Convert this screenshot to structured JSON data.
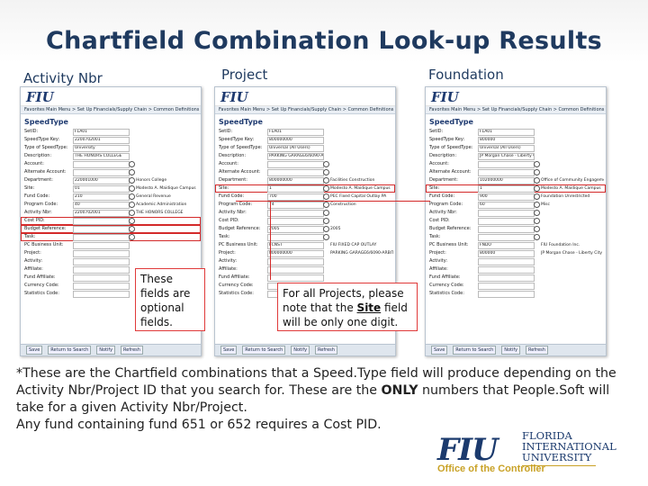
{
  "title": "Chartfield Combination Look-up Results",
  "column_labels": {
    "activity": "Activity Nbr",
    "project": "Project",
    "foundation": "Foundation"
  },
  "screens": {
    "app_logo": "FIU",
    "nav": "Favorites   Main Menu  >  Set Up Financials/Supply Chain  >  Common Definitions  >  Design C",
    "page_title": "SpeedType",
    "footer_buttons": [
      "Save",
      "Return to Search",
      "Notify",
      "Refresh"
    ],
    "activity_rows": [
      {
        "k": "SetID:",
        "v": "FLA01",
        "d": ""
      },
      {
        "k": "SpeedType Key:",
        "v": "2200702001",
        "d": ""
      },
      {
        "k": "Type of SpeedType:",
        "v": "University",
        "d": ""
      },
      {
        "k": "Description:",
        "v": "THE HONORS COLLEGE",
        "d": ""
      },
      {
        "k": "Account:",
        "v": "",
        "d": ""
      },
      {
        "k": "Alternate Account:",
        "v": "",
        "d": ""
      },
      {
        "k": "Department:",
        "v": "220001000",
        "d": "Honors College"
      },
      {
        "k": "Site:",
        "v": "01",
        "d": "Modesto A. Maidique Campus"
      },
      {
        "k": "Fund Code:",
        "v": "210",
        "d": "General Revenue"
      },
      {
        "k": "Program Code:",
        "v": "40",
        "d": "Academic Administration"
      },
      {
        "k": "Activity Nbr:",
        "v": "2200702001",
        "d": "THE HONORS COLLEGE"
      },
      {
        "k": "Cost PID:",
        "v": "",
        "d": "",
        "hl": true
      },
      {
        "k": "Budget Reference:",
        "v": "",
        "d": "",
        "hl": true
      },
      {
        "k": "Task:",
        "v": "",
        "d": "",
        "hl": true
      },
      {
        "k": "PC Business Unit:",
        "v": "",
        "d": ""
      },
      {
        "k": "Project:",
        "v": "",
        "d": ""
      },
      {
        "k": "Activity:",
        "v": "",
        "d": ""
      },
      {
        "k": "Affiliate:",
        "v": "",
        "d": ""
      },
      {
        "k": "Fund Affiliate:",
        "v": "",
        "d": ""
      },
      {
        "k": "Currency Code:",
        "v": "",
        "d": ""
      },
      {
        "k": "Statistics Code:",
        "v": "",
        "d": ""
      }
    ],
    "project_rows": [
      {
        "k": "SetID:",
        "v": "FLA01",
        "d": ""
      },
      {
        "k": "SpeedType Key:",
        "v": "800000000",
        "d": ""
      },
      {
        "k": "Type of SpeedType:",
        "v": "Universal (All Users)",
        "d": ""
      },
      {
        "k": "Description:",
        "v": "PARKING GARAGE6/6090-ARBITRAGE",
        "d": ""
      },
      {
        "k": "Account:",
        "v": "",
        "d": ""
      },
      {
        "k": "Alternate Account:",
        "v": "",
        "d": ""
      },
      {
        "k": "Department:",
        "v": "800000000",
        "d": "Facilities Construction"
      },
      {
        "k": "Site:",
        "v": "1",
        "d": "Modesto A. Maidique Campus",
        "hl": true
      },
      {
        "k": "Fund Code:",
        "v": "700",
        "d": "PEC Fixed Capital Outlay PA"
      },
      {
        "k": "Program Code:",
        "v": "74",
        "d": "Construction"
      },
      {
        "k": "Activity Nbr:",
        "v": "",
        "d": ""
      },
      {
        "k": "Cost PID:",
        "v": "",
        "d": ""
      },
      {
        "k": "Budget Reference:",
        "v": "2005",
        "d": "2005"
      },
      {
        "k": "Task:",
        "v": "",
        "d": ""
      },
      {
        "k": "PC Business Unit:",
        "v": "FCNST",
        "d": "FIU FIXED CAP OUTLAY"
      },
      {
        "k": "Project:",
        "v": "800000000",
        "d": "PARKING GARAGE6/6090-ARBITRAGE"
      },
      {
        "k": "Activity:",
        "v": "",
        "d": ""
      },
      {
        "k": "Affiliate:",
        "v": "",
        "d": ""
      },
      {
        "k": "Fund Affiliate:",
        "v": "",
        "d": ""
      },
      {
        "k": "Currency Code:",
        "v": "",
        "d": ""
      },
      {
        "k": "Statistics Code:",
        "v": "",
        "d": ""
      }
    ],
    "foundation_rows": [
      {
        "k": "SetID:",
        "v": "FLA01",
        "d": ""
      },
      {
        "k": "SpeedType Key:",
        "v": "800000",
        "d": ""
      },
      {
        "k": "Type of SpeedType:",
        "v": "Universal (All Users)",
        "d": ""
      },
      {
        "k": "Description:",
        "v": "JP Morgan Chase - Liberty City",
        "d": ""
      },
      {
        "k": "Account:",
        "v": "",
        "d": ""
      },
      {
        "k": "Alternate Account:",
        "v": "",
        "d": ""
      },
      {
        "k": "Department:",
        "v": "102000000",
        "d": "Office of Community Engagement"
      },
      {
        "k": "Site:",
        "v": "1",
        "d": "Modesto A. Maidique Campus",
        "hl": true
      },
      {
        "k": "Fund Code:",
        "v": "900",
        "d": "Foundation Unrestricted"
      },
      {
        "k": "Program Code:",
        "v": "60",
        "d": "Misc"
      },
      {
        "k": "Activity Nbr:",
        "v": "",
        "d": ""
      },
      {
        "k": "Cost PID:",
        "v": "",
        "d": ""
      },
      {
        "k": "Budget Reference:",
        "v": "",
        "d": ""
      },
      {
        "k": "Task:",
        "v": "",
        "d": ""
      },
      {
        "k": "PC Business Unit:",
        "v": "FNDO",
        "d": "FIU Foundation Inc."
      },
      {
        "k": "Project:",
        "v": "800000",
        "d": "JP Morgan Chase - Liberty City"
      },
      {
        "k": "Activity:",
        "v": "",
        "d": ""
      },
      {
        "k": "Affiliate:",
        "v": "",
        "d": ""
      },
      {
        "k": "Fund Affiliate:",
        "v": "",
        "d": ""
      },
      {
        "k": "Currency Code:",
        "v": "",
        "d": ""
      },
      {
        "k": "Statistics Code:",
        "v": "",
        "d": ""
      }
    ]
  },
  "callouts": {
    "optional": "These fields are optional fields.",
    "site_pre": "For all Projects, please note that the ",
    "site_word": "Site",
    "site_post": " field will be only one digit."
  },
  "body": {
    "line1_pre": "*These are the Chartfield combinations that a Speed.Type field will produce depending on the Activity Nbr/Project ID that you search for.  These are the ",
    "line1_bold": "ONLY",
    "line1_post": " numbers that People.Soft will take for a given Activity Nbr/Project.",
    "line2": "Any fund containing fund 651 or 652 requires a Cost PID."
  },
  "logo": {
    "mark": "FIU",
    "name_lines": [
      "FLORIDA",
      "INTERNATIONAL",
      "UNIVERSITY"
    ],
    "office": "Office of the Controller"
  },
  "colors": {
    "title": "#1f3a5f",
    "highlight": "#d42a2a",
    "gold": "#c9a227",
    "navy": "#1b3a6d"
  }
}
